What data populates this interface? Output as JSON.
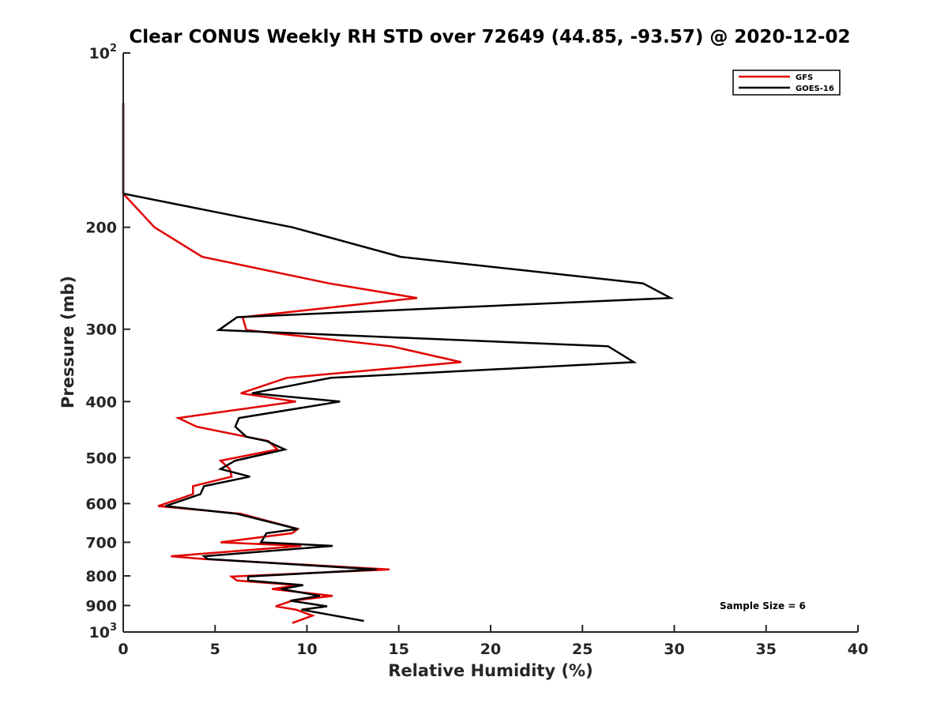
{
  "chart_data": {
    "type": "line",
    "title": "Clear CONUS Weekly RH STD over 72649 (44.85, -93.57) @ 2020-12-02",
    "xlabel": "Relative Humidity (%)",
    "ylabel": "Pressure (mb)",
    "xlim": [
      0,
      40
    ],
    "ylim": [
      100,
      1000
    ],
    "yscale": "log",
    "yreversed": true,
    "grid": false,
    "legend_position": "top-right",
    "x_ticks": [
      "0",
      "5",
      "10",
      "15",
      "20",
      "25",
      "30",
      "35",
      "40"
    ],
    "y_ticks": [
      {
        "value": 100,
        "base": "10",
        "exp": "2"
      },
      {
        "value": 200,
        "label": "200"
      },
      {
        "value": 300,
        "label": "300"
      },
      {
        "value": 400,
        "label": "400"
      },
      {
        "value": 500,
        "label": "500"
      },
      {
        "value": 600,
        "label": "600"
      },
      {
        "value": 700,
        "label": "700"
      },
      {
        "value": 800,
        "label": "800"
      },
      {
        "value": 900,
        "label": "900"
      },
      {
        "value": 1000,
        "base": "10",
        "exp": "3"
      }
    ],
    "annotation": "Sample Size = 6",
    "series": [
      {
        "name": "GFS",
        "color": "#e00000",
        "points": [
          [
            0,
            122
          ],
          [
            0,
            175
          ],
          [
            1.7,
            200
          ],
          [
            4.3,
            225
          ],
          [
            11.2,
            250
          ],
          [
            16,
            265
          ],
          [
            6.5,
            286
          ],
          [
            6.7,
            301
          ],
          [
            14.6,
            321
          ],
          [
            18.4,
            342
          ],
          [
            8.9,
            364
          ],
          [
            6.4,
            387
          ],
          [
            9.4,
            400
          ],
          [
            3.0,
            427
          ],
          [
            4.0,
            442
          ],
          [
            6.7,
            460
          ],
          [
            7.9,
            468
          ],
          [
            8.4,
            484
          ],
          [
            5.3,
            506
          ],
          [
            5.8,
            523
          ],
          [
            5.9,
            539
          ],
          [
            3.8,
            560
          ],
          [
            3.8,
            578
          ],
          [
            1.9,
            606
          ],
          [
            6.4,
            625
          ],
          [
            9.5,
            664
          ],
          [
            9.2,
            675
          ],
          [
            5.3,
            700
          ],
          [
            9.7,
            710
          ],
          [
            2.6,
            740
          ],
          [
            4.4,
            748
          ],
          [
            14.5,
            780
          ],
          [
            5.9,
            802
          ],
          [
            6.2,
            815
          ],
          [
            9.5,
            830
          ],
          [
            8.1,
            843
          ],
          [
            11.4,
            866
          ],
          [
            9.2,
            883
          ],
          [
            8.3,
            903
          ],
          [
            9.4,
            915
          ],
          [
            10.3,
            937
          ],
          [
            9.2,
            965
          ]
        ]
      },
      {
        "name": "GOES-16",
        "color": "#000000",
        "points": [
          [
            0,
            122
          ],
          [
            0,
            175
          ],
          [
            9.2,
            200
          ],
          [
            15.1,
            225
          ],
          [
            28.3,
            250
          ],
          [
            29.8,
            265
          ],
          [
            6.2,
            286
          ],
          [
            5.2,
            301
          ],
          [
            26.4,
            321
          ],
          [
            27.8,
            342
          ],
          [
            11.3,
            364
          ],
          [
            7.0,
            387
          ],
          [
            11.8,
            400
          ],
          [
            6.3,
            427
          ],
          [
            6.1,
            442
          ],
          [
            6.7,
            460
          ],
          [
            7.8,
            468
          ],
          [
            8.8,
            484
          ],
          [
            6.1,
            506
          ],
          [
            5.3,
            523
          ],
          [
            6.9,
            539
          ],
          [
            4.4,
            560
          ],
          [
            4.2,
            578
          ],
          [
            2.3,
            606
          ],
          [
            6.2,
            625
          ],
          [
            9.5,
            664
          ],
          [
            7.8,
            675
          ],
          [
            7.5,
            700
          ],
          [
            11.4,
            710
          ],
          [
            4.4,
            740
          ],
          [
            4.6,
            748
          ],
          [
            13.8,
            780
          ],
          [
            6.8,
            802
          ],
          [
            6.8,
            815
          ],
          [
            9.8,
            830
          ],
          [
            8.6,
            843
          ],
          [
            10.7,
            866
          ],
          [
            9.1,
            883
          ],
          [
            11.1,
            903
          ],
          [
            9.7,
            915
          ],
          [
            13.1,
            957
          ]
        ]
      }
    ]
  }
}
